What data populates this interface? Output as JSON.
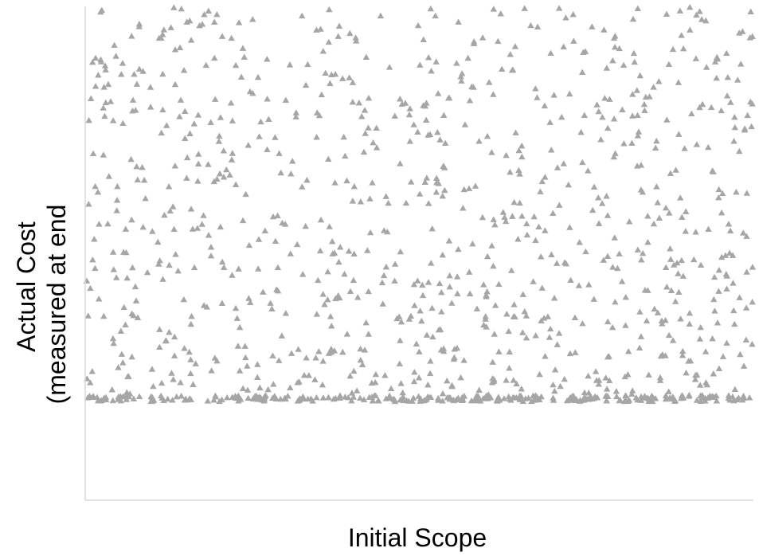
{
  "chart_data": {
    "type": "scatter",
    "title": "",
    "xlabel": "Initial Scope",
    "ylabel_line1": "Actual Cost",
    "ylabel_line2": "(measured at end",
    "x_ticks": "none",
    "y_ticks": "none",
    "grid": false,
    "legend": "none",
    "marker": "triangle",
    "marker_color": "#a6a6a6",
    "axis_color": "#d9d9d9",
    "series": [
      {
        "x_range": [
          0,
          100
        ],
        "y_floor": 20,
        "y_range": [
          0,
          100
        ],
        "point_count": 1200,
        "distribution": "dense band just above the floor, thinning upward to the top"
      }
    ]
  }
}
